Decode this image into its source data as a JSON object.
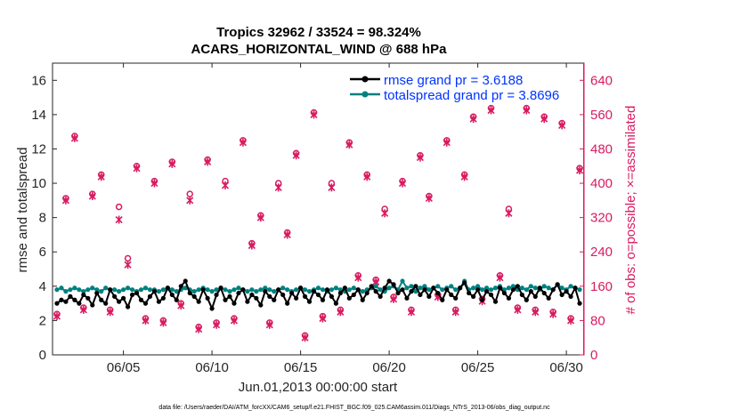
{
  "chart_data": {
    "type": "line",
    "title_line1": "Tropics 32962 / 33524 = 98.324%",
    "title_line2": "ACARS_HORIZONTAL_WIND @ 688 hPa",
    "xlabel": "Jun.01,2013 00:00:00 start",
    "ylabel": "rmse and totalspread",
    "ylabel_right": "# of obs: o=possible; ×=assimilated",
    "footnote": "data file: /Users/raeder/DAI/ATM_forcXX/CAM6_setup/f.e21.FHIST_BGC.f09_025.CAM6assim.011/Diags_NTrS_2013-06/obs_diag_output.nc",
    "xlim": [
      1.0,
      31.0
    ],
    "ylim": [
      0,
      17
    ],
    "ylim_right": [
      0,
      680
    ],
    "x_ticks": [
      5,
      10,
      15,
      20,
      25,
      30
    ],
    "x_tick_labels": [
      "06/05",
      "06/10",
      "06/15",
      "06/20",
      "06/25",
      "06/30"
    ],
    "y_ticks": [
      0,
      2,
      4,
      6,
      8,
      10,
      12,
      14,
      16
    ],
    "y_tick_labels": [
      "0",
      "2",
      "4",
      "6",
      "8",
      "10",
      "12",
      "14",
      "16"
    ],
    "y2_ticks": [
      0,
      80,
      160,
      240,
      320,
      400,
      480,
      560,
      640
    ],
    "y2_tick_labels": [
      "0",
      "80",
      "160",
      "240",
      "320",
      "400",
      "480",
      "560",
      "640"
    ],
    "colors": {
      "rmse": "#000000",
      "spread": "#008080",
      "obs": "#d81b60"
    },
    "legend": [
      {
        "label": "rmse grand pr = 3.6188",
        "color": "#000000"
      },
      {
        "label": "totalspread grand pr = 3.8696",
        "color": "#008080"
      }
    ],
    "series": [
      {
        "name": "rmse",
        "x": [
          1.25,
          1.5,
          1.75,
          2.0,
          2.25,
          2.5,
          2.75,
          3.0,
          3.25,
          3.5,
          3.75,
          4.0,
          4.25,
          4.5,
          4.75,
          5.0,
          5.25,
          5.5,
          5.75,
          6.0,
          6.25,
          6.5,
          6.75,
          7.0,
          7.25,
          7.5,
          7.75,
          8.0,
          8.25,
          8.5,
          8.75,
          9.0,
          9.25,
          9.5,
          9.75,
          10.0,
          10.25,
          10.5,
          10.75,
          11.0,
          11.25,
          11.5,
          11.75,
          12.0,
          12.25,
          12.5,
          12.75,
          13.0,
          13.25,
          13.5,
          13.75,
          14.0,
          14.25,
          14.5,
          14.75,
          15.0,
          15.25,
          15.5,
          15.75,
          16.0,
          16.25,
          16.5,
          16.75,
          17.0,
          17.25,
          17.5,
          17.75,
          18.0,
          18.25,
          18.5,
          18.75,
          19.0,
          19.25,
          19.5,
          19.75,
          20.0,
          20.25,
          20.5,
          20.75,
          21.0,
          21.25,
          21.5,
          21.75,
          22.0,
          22.25,
          22.5,
          22.75,
          23.0,
          23.25,
          23.5,
          23.75,
          24.0,
          24.25,
          24.5,
          24.75,
          25.0,
          25.25,
          25.5,
          25.75,
          26.0,
          26.25,
          26.5,
          26.75,
          27.0,
          27.25,
          27.5,
          27.75,
          28.0,
          28.25,
          28.5,
          28.75,
          29.0,
          29.25,
          29.5,
          29.75,
          30.0,
          30.25,
          30.5,
          30.75
        ],
        "values": [
          3.0,
          3.2,
          3.1,
          3.4,
          3.2,
          3.0,
          3.5,
          3.3,
          2.9,
          3.6,
          3.2,
          3.0,
          3.8,
          3.4,
          3.1,
          3.3,
          2.8,
          3.5,
          3.6,
          3.2,
          3.0,
          3.4,
          3.7,
          3.1,
          3.3,
          3.9,
          3.5,
          3.2,
          4.0,
          4.3,
          3.6,
          3.4,
          3.1,
          3.8,
          3.3,
          2.7,
          3.5,
          3.9,
          3.2,
          3.4,
          3.0,
          3.6,
          3.8,
          3.1,
          3.5,
          3.3,
          2.9,
          3.7,
          3.4,
          3.2,
          3.8,
          3.5,
          3.0,
          3.6,
          3.3,
          3.9,
          3.4,
          3.1,
          3.7,
          3.5,
          3.2,
          3.8,
          3.4,
          3.0,
          3.6,
          3.9,
          3.3,
          3.5,
          3.8,
          3.2,
          3.6,
          4.0,
          3.7,
          3.4,
          3.9,
          4.3,
          4.1,
          3.6,
          3.8,
          3.3,
          3.7,
          4.0,
          3.5,
          3.8,
          3.4,
          3.9,
          3.6,
          3.2,
          3.8,
          3.5,
          3.3,
          3.9,
          4.2,
          3.6,
          3.4,
          3.8,
          3.2,
          3.7,
          3.5,
          3.1,
          3.9,
          3.6,
          3.3,
          3.8,
          4.0,
          3.5,
          3.2,
          3.7,
          3.4,
          3.9,
          3.6,
          3.3,
          3.8,
          4.1,
          3.5,
          3.7,
          3.4,
          3.9,
          3.0
        ]
      },
      {
        "name": "totalspread",
        "x": [
          1.25,
          1.5,
          1.75,
          2.0,
          2.25,
          2.5,
          2.75,
          3.0,
          3.25,
          3.5,
          3.75,
          4.0,
          4.25,
          4.5,
          4.75,
          5.0,
          5.25,
          5.5,
          5.75,
          6.0,
          6.25,
          6.5,
          6.75,
          7.0,
          7.25,
          7.5,
          7.75,
          8.0,
          8.25,
          8.5,
          8.75,
          9.0,
          9.25,
          9.5,
          9.75,
          10.0,
          10.25,
          10.5,
          10.75,
          11.0,
          11.25,
          11.5,
          11.75,
          12.0,
          12.25,
          12.5,
          12.75,
          13.0,
          13.25,
          13.5,
          13.75,
          14.0,
          14.25,
          14.5,
          14.75,
          15.0,
          15.25,
          15.5,
          15.75,
          16.0,
          16.25,
          16.5,
          16.75,
          17.0,
          17.25,
          17.5,
          17.75,
          18.0,
          18.25,
          18.5,
          18.75,
          19.0,
          19.25,
          19.5,
          19.75,
          20.0,
          20.25,
          20.5,
          20.75,
          21.0,
          21.25,
          21.5,
          21.75,
          22.0,
          22.25,
          22.5,
          22.75,
          23.0,
          23.25,
          23.5,
          23.75,
          24.0,
          24.25,
          24.5,
          24.75,
          25.0,
          25.25,
          25.5,
          25.75,
          26.0,
          26.25,
          26.5,
          26.75,
          27.0,
          27.25,
          27.5,
          27.75,
          28.0,
          28.25,
          28.5,
          28.75,
          29.0,
          29.25,
          29.5,
          29.75,
          30.0,
          30.25,
          30.5,
          30.75
        ],
        "values": [
          3.8,
          3.9,
          3.7,
          3.8,
          3.9,
          3.8,
          3.7,
          3.8,
          3.9,
          3.8,
          3.7,
          3.9,
          3.8,
          3.8,
          3.7,
          3.8,
          3.9,
          3.8,
          3.7,
          3.8,
          3.9,
          3.8,
          3.8,
          3.7,
          3.8,
          3.9,
          3.8,
          3.7,
          3.8,
          3.9,
          3.8,
          3.7,
          3.8,
          3.9,
          3.8,
          3.7,
          3.8,
          3.9,
          3.8,
          3.7,
          3.8,
          3.9,
          3.8,
          3.7,
          3.8,
          3.7,
          3.8,
          3.9,
          3.8,
          3.7,
          3.8,
          3.9,
          3.8,
          3.7,
          3.8,
          3.9,
          3.8,
          3.7,
          3.8,
          3.9,
          3.8,
          3.7,
          3.8,
          3.9,
          3.8,
          3.7,
          3.8,
          3.9,
          3.8,
          3.7,
          3.8,
          3.9,
          4.0,
          3.8,
          3.7,
          3.9,
          4.0,
          3.8,
          4.3,
          3.9,
          4.0,
          3.7,
          3.9,
          4.0,
          3.8,
          3.9,
          4.0,
          3.8,
          3.9,
          4.0,
          3.8,
          3.9,
          4.3,
          3.8,
          3.9,
          4.0,
          3.8,
          3.9,
          3.8,
          3.9,
          4.0,
          3.8,
          3.9,
          4.0,
          3.8,
          3.9,
          3.8,
          4.0,
          3.9,
          3.8,
          4.0,
          3.9,
          3.8,
          4.1,
          3.9,
          3.8,
          4.0,
          3.9,
          3.8
        ]
      },
      {
        "name": "obs possible (o)",
        "x": [
          1.25,
          1.75,
          2.25,
          2.75,
          3.25,
          3.75,
          4.25,
          4.75,
          5.25,
          5.75,
          6.25,
          6.75,
          7.25,
          7.75,
          8.25,
          8.75,
          9.25,
          9.75,
          10.25,
          10.75,
          11.25,
          11.75,
          12.25,
          12.75,
          13.25,
          13.75,
          14.25,
          14.75,
          15.25,
          15.75,
          16.25,
          16.75,
          17.25,
          17.75,
          18.25,
          18.75,
          19.25,
          19.75,
          20.25,
          20.75,
          21.25,
          21.75,
          22.25,
          22.75,
          23.25,
          23.75,
          24.25,
          24.75,
          25.25,
          25.75,
          26.25,
          26.75,
          27.25,
          27.75,
          28.25,
          28.75,
          29.25,
          29.75,
          30.25,
          30.75
        ],
        "values": [
          95,
          365,
          510,
          110,
          375,
          420,
          105,
          345,
          225,
          440,
          85,
          405,
          80,
          450,
          120,
          375,
          65,
          455,
          75,
          405,
          85,
          500,
          260,
          325,
          75,
          400,
          285,
          470,
          45,
          565,
          90,
          400,
          105,
          495,
          185,
          420,
          175,
          340,
          135,
          405,
          105,
          465,
          370,
          140,
          500,
          105,
          420,
          555,
          130,
          575,
          185,
          340,
          110,
          575,
          105,
          555,
          100,
          540,
          85,
          435
        ]
      },
      {
        "name": "obs assimilated (x)",
        "x": [
          1.25,
          1.75,
          2.25,
          2.75,
          3.25,
          3.75,
          4.25,
          4.75,
          5.25,
          5.75,
          6.25,
          6.75,
          7.25,
          7.75,
          8.25,
          8.75,
          9.25,
          9.75,
          10.25,
          10.75,
          11.25,
          11.75,
          12.25,
          12.75,
          13.25,
          13.75,
          14.25,
          14.75,
          15.25,
          15.75,
          16.25,
          16.75,
          17.25,
          17.75,
          18.25,
          18.75,
          19.25,
          19.75,
          20.25,
          20.75,
          21.25,
          21.75,
          22.25,
          22.75,
          23.25,
          23.75,
          24.25,
          24.75,
          25.25,
          25.75,
          26.25,
          26.75,
          27.25,
          27.75,
          28.25,
          28.75,
          29.25,
          29.75,
          30.25,
          30.75
        ],
        "values": [
          90,
          360,
          505,
          105,
          370,
          415,
          100,
          315,
          210,
          435,
          80,
          400,
          75,
          445,
          115,
          360,
          60,
          450,
          70,
          395,
          80,
          495,
          255,
          320,
          70,
          390,
          280,
          465,
          40,
          560,
          85,
          390,
          100,
          490,
          180,
          415,
          170,
          330,
          130,
          400,
          100,
          460,
          365,
          135,
          495,
          100,
          415,
          550,
          125,
          570,
          180,
          330,
          105,
          570,
          100,
          550,
          95,
          535,
          80,
          430
        ]
      }
    ]
  }
}
